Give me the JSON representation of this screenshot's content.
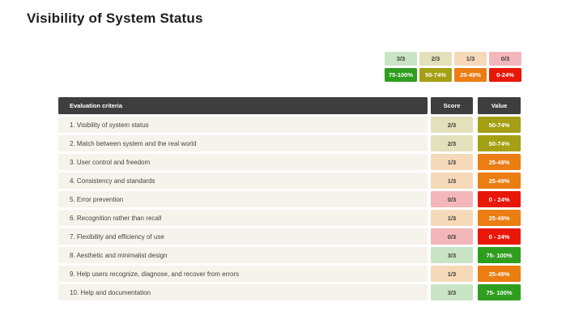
{
  "title": "Visibility of System Status",
  "colors": {
    "green": {
      "light": "#c9e4c5",
      "solid": "#2f9e1f"
    },
    "olive": {
      "light": "#e3e0bb",
      "solid": "#a4a013"
    },
    "orange": {
      "light": "#f6d9b9",
      "solid": "#eb7d13"
    },
    "red": {
      "light": "#f3b7bb",
      "solid": "#e91708"
    },
    "header_bg": "#3f3e3e",
    "row_bg": "#f6f3ec"
  },
  "legend": {
    "scores": [
      {
        "label": "3/3",
        "tone": "green"
      },
      {
        "label": "2/3",
        "tone": "olive"
      },
      {
        "label": "1/3",
        "tone": "orange"
      },
      {
        "label": "0/3",
        "tone": "red"
      }
    ],
    "ranges": [
      {
        "label": "75-100%",
        "tone": "green"
      },
      {
        "label": "50-74%",
        "tone": "olive"
      },
      {
        "label": "25-49%",
        "tone": "orange"
      },
      {
        "label": "0-24%",
        "tone": "red"
      }
    ]
  },
  "chart_data": {
    "type": "table",
    "title": "Visibility of System Status",
    "columns": [
      "Evaluation criteria",
      "Score",
      "Value"
    ],
    "rows": [
      {
        "criteria": "1.  Visibility of system status",
        "score": "2/3",
        "value": "50-74%",
        "tone": "olive"
      },
      {
        "criteria": "2.  Match between system and the real world",
        "score": "2/3",
        "value": "50-74%",
        "tone": "olive"
      },
      {
        "criteria": "3.  User control and freedom",
        "score": "1/3",
        "value": "25-49%",
        "tone": "orange"
      },
      {
        "criteria": "4.  Consistency and standards",
        "score": "1/3",
        "value": "25-49%",
        "tone": "orange"
      },
      {
        "criteria": "5.  Error prevention",
        "score": "0/3",
        "value": "0 - 24%",
        "tone": "red"
      },
      {
        "criteria": "6.  Recognition rather than recall",
        "score": "1/3",
        "value": "25-49%",
        "tone": "orange"
      },
      {
        "criteria": "7.  Flexibility and efficiency of use",
        "score": "0/3",
        "value": "0 - 24%",
        "tone": "red"
      },
      {
        "criteria": "8.  Aesthetic and minimalist design",
        "score": "3/3",
        "value": "75- 100%",
        "tone": "green"
      },
      {
        "criteria": "9.  Help users recognize, diagnose, and recover from errors",
        "score": "1/3",
        "value": "25-49%",
        "tone": "orange"
      },
      {
        "criteria": "10. Help and documentation",
        "score": "3/3",
        "value": "75- 100%",
        "tone": "green"
      }
    ]
  }
}
